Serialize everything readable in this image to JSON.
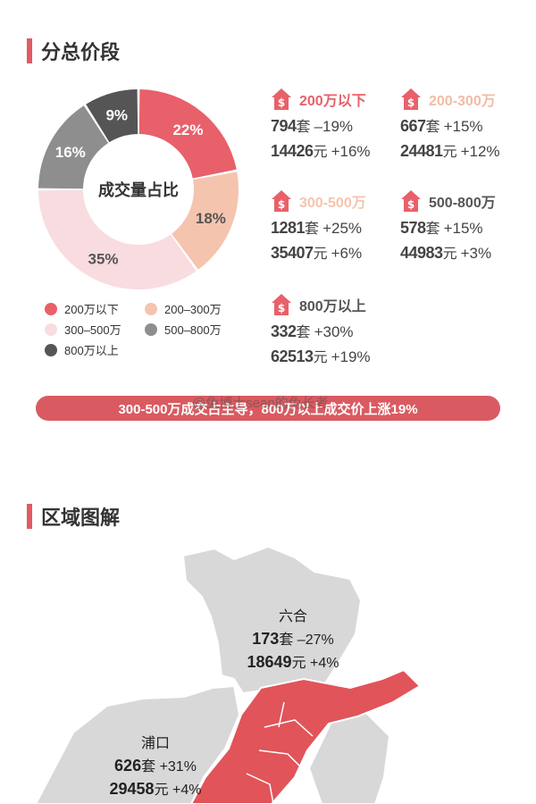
{
  "section1": {
    "title": "分总价段"
  },
  "chart_data": {
    "type": "pie",
    "center_label": "成交量占比",
    "labels": [
      "200万以下",
      "200-300万",
      "300-500万",
      "500-800万",
      "800万以上"
    ],
    "values": [
      22,
      18,
      35,
      16,
      9
    ],
    "value_labels": [
      "22%",
      "18%",
      "35%",
      "16%",
      "9%"
    ],
    "colors": [
      "#e8606a",
      "#f5c4ae",
      "#f8dce0",
      "#8e8e8e",
      "#555555"
    ]
  },
  "legend": [
    {
      "label": "200万以下",
      "color": "#e8606a"
    },
    {
      "label": "200–300万",
      "color": "#f5c4ae"
    },
    {
      "label": "300–500万",
      "color": "#f8dce0"
    },
    {
      "label": "500–800万",
      "color": "#8e8e8e"
    },
    {
      "label": "800万以上",
      "color": "#555555"
    }
  ],
  "price_segments": [
    {
      "label": "200万以下",
      "color": "#e8606a",
      "count": "794",
      "count_unit": "套",
      "count_change": "–19%",
      "price": "14426",
      "price_unit": "元",
      "price_change": "+16%"
    },
    {
      "label": "200-300万",
      "color": "#f5c4ae",
      "count": "667",
      "count_unit": "套",
      "count_change": "+15%",
      "price": "24481",
      "price_unit": "元",
      "price_change": "+12%"
    },
    {
      "label": "300-500万",
      "color": "#f5c4ae",
      "count": "1281",
      "count_unit": "套",
      "count_change": "+25%",
      "price": "35407",
      "price_unit": "元",
      "price_change": "+6%"
    },
    {
      "label": "500-800万",
      "color": "#555555",
      "count": "578",
      "count_unit": "套",
      "count_change": "+15%",
      "price": "44983",
      "price_unit": "元",
      "price_change": "+3%"
    },
    {
      "label": "800万以上",
      "color": "#555555",
      "count": "332",
      "count_unit": "套",
      "count_change": "+30%",
      "price": "62513",
      "price_unit": "元",
      "price_change": "+19%"
    }
  ],
  "banner": {
    "text": "300-500万成交占主导，800万以上成交价上涨19%"
  },
  "watermark": {
    "text": "@兔博士sean的兔长者"
  },
  "section2": {
    "title": "区域图解"
  },
  "regions": [
    {
      "name": "六合",
      "count": "173",
      "count_unit": "套",
      "count_change": "–27%",
      "price": "18649",
      "price_unit": "元",
      "price_change": "+4%"
    },
    {
      "name": "浦口",
      "count": "626",
      "count_unit": "套",
      "count_change": "+31%",
      "price": "29458",
      "price_unit": "元",
      "price_change": "+4%"
    }
  ],
  "map_colors": {
    "base": "#d8d8d8",
    "highlight": "#e0545a",
    "border": "#ffffff"
  }
}
